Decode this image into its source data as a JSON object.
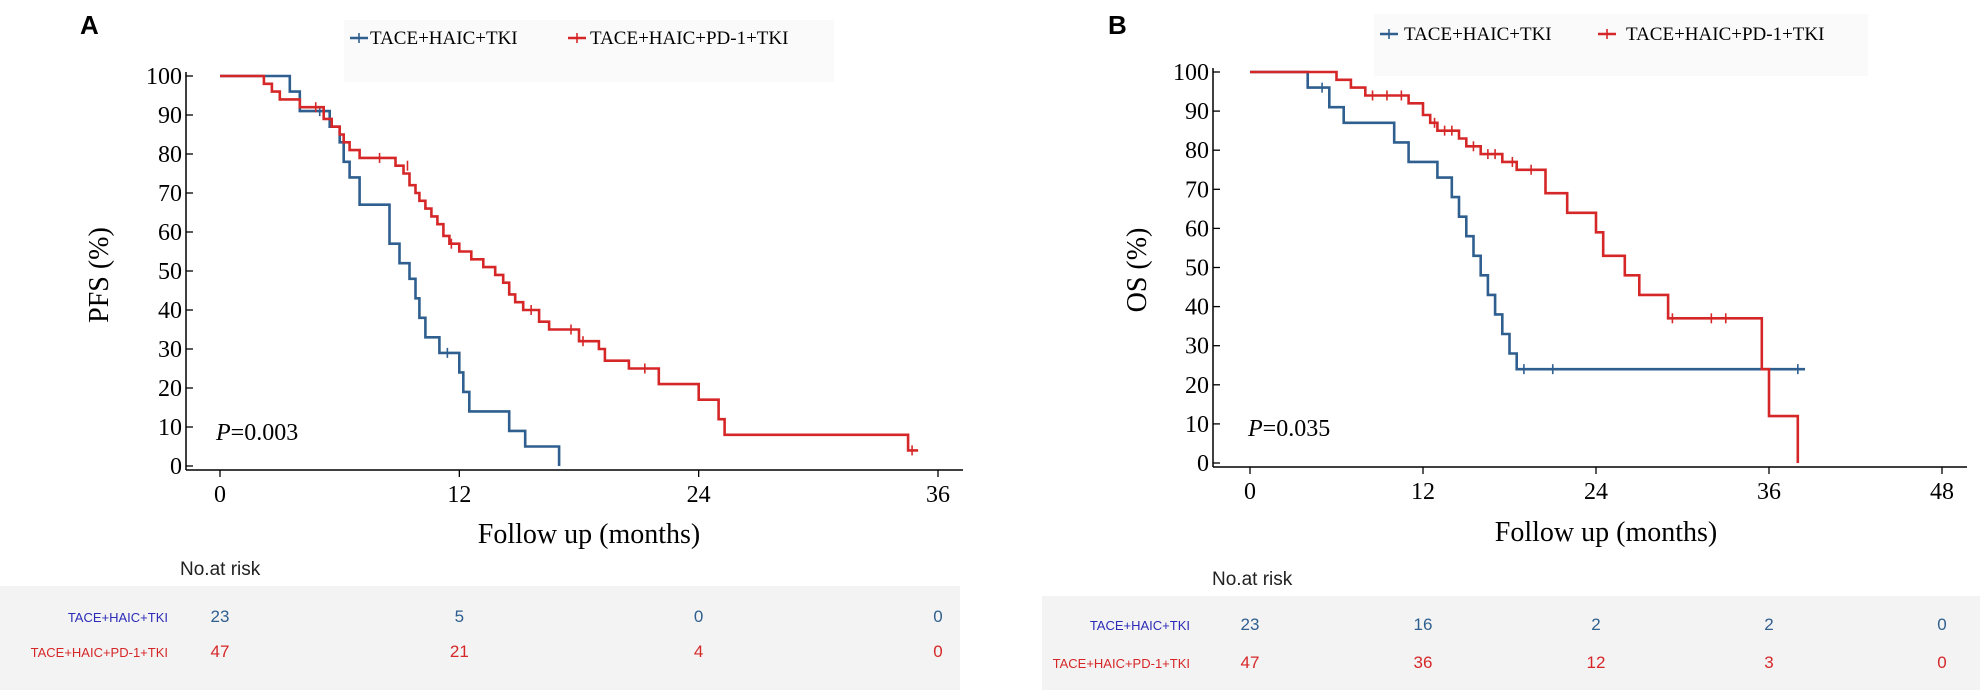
{
  "colors": {
    "blue": "#2f5f8f",
    "red": "#d62728",
    "blue_label": "#2b2bb8",
    "red_label": "#d62728",
    "risk_bg": "#f3f3f3"
  },
  "chart_data": [
    {
      "panel": "A",
      "type": "line",
      "step": true,
      "ylabel": "PFS (%)",
      "xlabel": "Follow up (months)",
      "xlim": [
        0,
        36
      ],
      "ylim": [
        0,
        100
      ],
      "xticks": [
        0,
        12,
        24,
        36
      ],
      "yticks": [
        0,
        10,
        20,
        30,
        40,
        50,
        60,
        70,
        80,
        90,
        100
      ],
      "p_value_label": "P",
      "p_value_text": "=0.003",
      "legend": [
        "TACE+HAIC+TKI",
        "TACE+HAIC+PD-1+TKI"
      ],
      "series": [
        {
          "name": "TACE+HAIC+TKI",
          "color": "#2f5f8f",
          "points": [
            [
              0,
              100
            ],
            [
              3.5,
              100
            ],
            [
              3.5,
              96
            ],
            [
              4,
              96
            ],
            [
              4,
              91
            ],
            [
              5.5,
              91
            ],
            [
              5.5,
              87
            ],
            [
              6,
              87
            ],
            [
              6,
              83
            ],
            [
              6.2,
              83
            ],
            [
              6.2,
              78
            ],
            [
              6.5,
              78
            ],
            [
              6.5,
              74
            ],
            [
              7,
              74
            ],
            [
              7,
              67
            ],
            [
              8.5,
              67
            ],
            [
              8.5,
              57
            ],
            [
              9,
              57
            ],
            [
              9,
              52
            ],
            [
              9.5,
              52
            ],
            [
              9.5,
              48
            ],
            [
              9.8,
              48
            ],
            [
              9.8,
              43
            ],
            [
              10,
              43
            ],
            [
              10,
              38
            ],
            [
              10.3,
              38
            ],
            [
              10.3,
              33
            ],
            [
              11,
              33
            ],
            [
              11,
              29
            ],
            [
              12,
              29
            ],
            [
              12,
              24
            ],
            [
              12.2,
              24
            ],
            [
              12.2,
              19
            ],
            [
              12.5,
              19
            ],
            [
              12.5,
              14
            ],
            [
              14.5,
              14
            ],
            [
              14.5,
              9
            ],
            [
              15.3,
              9
            ],
            [
              15.3,
              5
            ],
            [
              17,
              5
            ],
            [
              17,
              0
            ]
          ],
          "censor": [
            [
              5,
              91
            ],
            [
              11.4,
              29
            ]
          ]
        },
        {
          "name": "TACE+HAIC+PD-1+TKI",
          "color": "#d62728",
          "points": [
            [
              0,
              100
            ],
            [
              2.2,
              100
            ],
            [
              2.2,
              98
            ],
            [
              2.6,
              98
            ],
            [
              2.6,
              96
            ],
            [
              3,
              96
            ],
            [
              3,
              94
            ],
            [
              4,
              94
            ],
            [
              4,
              92
            ],
            [
              5.2,
              92
            ],
            [
              5.2,
              89
            ],
            [
              5.6,
              89
            ],
            [
              5.6,
              87
            ],
            [
              6,
              87
            ],
            [
              6,
              85
            ],
            [
              6.2,
              85
            ],
            [
              6.2,
              83
            ],
            [
              6.5,
              83
            ],
            [
              6.5,
              81
            ],
            [
              7,
              81
            ],
            [
              7,
              79
            ],
            [
              8.8,
              79
            ],
            [
              8.8,
              77
            ],
            [
              9.2,
              77
            ],
            [
              9.2,
              75
            ],
            [
              9.5,
              75
            ],
            [
              9.5,
              72
            ],
            [
              9.8,
              72
            ],
            [
              9.8,
              70
            ],
            [
              10,
              70
            ],
            [
              10,
              68
            ],
            [
              10.3,
              68
            ],
            [
              10.3,
              66
            ],
            [
              10.6,
              66
            ],
            [
              10.6,
              64
            ],
            [
              10.9,
              64
            ],
            [
              10.9,
              62
            ],
            [
              11.2,
              62
            ],
            [
              11.2,
              59
            ],
            [
              11.5,
              59
            ],
            [
              11.5,
              57
            ],
            [
              12,
              57
            ],
            [
              12,
              55
            ],
            [
              12.6,
              55
            ],
            [
              12.6,
              53
            ],
            [
              13.2,
              53
            ],
            [
              13.2,
              51
            ],
            [
              13.8,
              51
            ],
            [
              13.8,
              49
            ],
            [
              14.2,
              49
            ],
            [
              14.2,
              47
            ],
            [
              14.5,
              47
            ],
            [
              14.5,
              44
            ],
            [
              14.8,
              44
            ],
            [
              14.8,
              42
            ],
            [
              15.2,
              42
            ],
            [
              15.2,
              40
            ],
            [
              16,
              40
            ],
            [
              16,
              37
            ],
            [
              16.5,
              37
            ],
            [
              16.5,
              35
            ],
            [
              18,
              35
            ],
            [
              18,
              32
            ],
            [
              19,
              32
            ],
            [
              19,
              30
            ],
            [
              19.3,
              30
            ],
            [
              19.3,
              27
            ],
            [
              20.5,
              27
            ],
            [
              20.5,
              25
            ],
            [
              22,
              25
            ],
            [
              22,
              21
            ],
            [
              24,
              21
            ],
            [
              24,
              17
            ],
            [
              25,
              17
            ],
            [
              25,
              12
            ],
            [
              25.3,
              12
            ],
            [
              25.3,
              8
            ],
            [
              34.5,
              8
            ],
            [
              34.5,
              4
            ],
            [
              35,
              4
            ]
          ],
          "censor": [
            [
              4.8,
              92
            ],
            [
              8,
              79
            ],
            [
              9.4,
              77
            ],
            [
              11.6,
              57
            ],
            [
              15.6,
              40
            ],
            [
              17.6,
              35
            ],
            [
              18.2,
              32
            ],
            [
              21.3,
              25
            ],
            [
              34.7,
              4
            ]
          ]
        }
      ],
      "risk_table": {
        "title": "No.at risk",
        "times": [
          0,
          12,
          24,
          36
        ],
        "rows": [
          {
            "label": "TACE+HAIC+TKI",
            "values": [
              "23",
              "5",
              "0",
              "0"
            ]
          },
          {
            "label": "TACE+HAIC+PD-1+TKI",
            "values": [
              "47",
              "21",
              "4",
              "0"
            ]
          }
        ]
      }
    },
    {
      "panel": "B",
      "type": "line",
      "step": true,
      "ylabel": "OS (%)",
      "xlabel": "Follow up (months)",
      "xlim": [
        0,
        48
      ],
      "ylim": [
        0,
        100
      ],
      "xticks": [
        0,
        12,
        24,
        36,
        48
      ],
      "yticks": [
        0,
        10,
        20,
        30,
        40,
        50,
        60,
        70,
        80,
        90,
        100
      ],
      "p_value_label": "P",
      "p_value_text": "=0.035",
      "legend": [
        "TACE+HAIC+TKI",
        "TACE+HAIC+PD-1+TKI"
      ],
      "series": [
        {
          "name": "TACE+HAIC+TKI",
          "color": "#2f5f8f",
          "points": [
            [
              0,
              100
            ],
            [
              4,
              100
            ],
            [
              4,
              96
            ],
            [
              5.5,
              96
            ],
            [
              5.5,
              91
            ],
            [
              6.5,
              91
            ],
            [
              6.5,
              87
            ],
            [
              10,
              87
            ],
            [
              10,
              82
            ],
            [
              11,
              82
            ],
            [
              11,
              77
            ],
            [
              13,
              77
            ],
            [
              13,
              73
            ],
            [
              14,
              73
            ],
            [
              14,
              68
            ],
            [
              14.5,
              68
            ],
            [
              14.5,
              63
            ],
            [
              15,
              63
            ],
            [
              15,
              58
            ],
            [
              15.5,
              58
            ],
            [
              15.5,
              53
            ],
            [
              16,
              53
            ],
            [
              16,
              48
            ],
            [
              16.5,
              48
            ],
            [
              16.5,
              43
            ],
            [
              17,
              43
            ],
            [
              17,
              38
            ],
            [
              17.5,
              38
            ],
            [
              17.5,
              33
            ],
            [
              18,
              33
            ],
            [
              18,
              28
            ],
            [
              18.5,
              28
            ],
            [
              18.5,
              24
            ],
            [
              38.5,
              24
            ]
          ],
          "censor": [
            [
              5,
              96
            ],
            [
              19,
              24
            ],
            [
              21,
              24
            ],
            [
              38,
              24
            ]
          ]
        },
        {
          "name": "TACE+HAIC+PD-1+TKI",
          "color": "#d62728",
          "points": [
            [
              0,
              100
            ],
            [
              6,
              100
            ],
            [
              6,
              98
            ],
            [
              7,
              98
            ],
            [
              7,
              96
            ],
            [
              8,
              96
            ],
            [
              8,
              94
            ],
            [
              11,
              94
            ],
            [
              11,
              92
            ],
            [
              12,
              92
            ],
            [
              12,
              89
            ],
            [
              12.5,
              89
            ],
            [
              12.5,
              87
            ],
            [
              13,
              87
            ],
            [
              13,
              85
            ],
            [
              14.5,
              85
            ],
            [
              14.5,
              83
            ],
            [
              15,
              83
            ],
            [
              15,
              81
            ],
            [
              16,
              81
            ],
            [
              16,
              79
            ],
            [
              17.5,
              79
            ],
            [
              17.5,
              77
            ],
            [
              18.5,
              77
            ],
            [
              18.5,
              75
            ],
            [
              20.5,
              75
            ],
            [
              20.5,
              69
            ],
            [
              22,
              69
            ],
            [
              22,
              64
            ],
            [
              24,
              64
            ],
            [
              24,
              59
            ],
            [
              24.5,
              59
            ],
            [
              24.5,
              53
            ],
            [
              26,
              53
            ],
            [
              26,
              48
            ],
            [
              27,
              48
            ],
            [
              27,
              43
            ],
            [
              29,
              43
            ],
            [
              29,
              37
            ],
            [
              35.5,
              37
            ],
            [
              35.5,
              24
            ],
            [
              36,
              24
            ],
            [
              36,
              12
            ],
            [
              38,
              12
            ],
            [
              38,
              0
            ]
          ],
          "censor": [
            [
              8.5,
              94
            ],
            [
              9.5,
              94
            ],
            [
              10.5,
              94
            ],
            [
              12.8,
              87
            ],
            [
              13.5,
              85
            ],
            [
              14,
              85
            ],
            [
              15.5,
              81
            ],
            [
              16.5,
              79
            ],
            [
              17,
              79
            ],
            [
              18.2,
              77
            ],
            [
              19.5,
              75
            ],
            [
              29.3,
              37
            ],
            [
              32,
              37
            ],
            [
              33,
              37
            ]
          ]
        }
      ],
      "risk_table": {
        "title": "No.at risk",
        "times": [
          0,
          12,
          24,
          36,
          48
        ],
        "rows": [
          {
            "label": "TACE+HAIC+TKI",
            "values": [
              "23",
              "16",
              "2",
              "2",
              "0"
            ]
          },
          {
            "label": "TACE+HAIC+PD-1+TKI",
            "values": [
              "47",
              "36",
              "12",
              "3",
              "0"
            ]
          }
        ]
      }
    }
  ]
}
